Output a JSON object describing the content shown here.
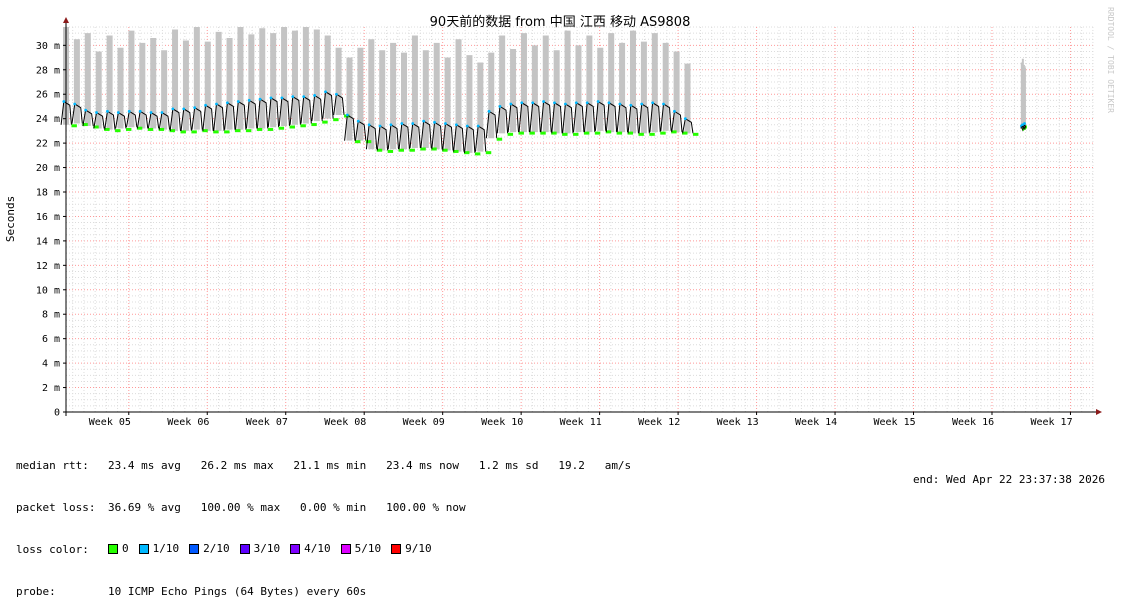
{
  "chart_data": {
    "type": "line",
    "title": "90天前的数据 from 中国 江西 移动 AS9808",
    "ylabel": "Seconds",
    "credit": "RRDTOOL / TOBI OETIKER",
    "ylim": [
      0,
      31.5
    ],
    "yticks": [
      {
        "v": 0,
        "label": "0"
      },
      {
        "v": 2,
        "label": "2 m"
      },
      {
        "v": 4,
        "label": "4 m"
      },
      {
        "v": 6,
        "label": "6 m"
      },
      {
        "v": 8,
        "label": "8 m"
      },
      {
        "v": 10,
        "label": "10 m"
      },
      {
        "v": 12,
        "label": "12 m"
      },
      {
        "v": 14,
        "label": "14 m"
      },
      {
        "v": 16,
        "label": "16 m"
      },
      {
        "v": 18,
        "label": "18 m"
      },
      {
        "v": 20,
        "label": "20 m"
      },
      {
        "v": 22,
        "label": "22 m"
      },
      {
        "v": 24,
        "label": "24 m"
      },
      {
        "v": 26,
        "label": "26 m"
      },
      {
        "v": 28,
        "label": "28 m"
      },
      {
        "v": 30,
        "label": "30 m"
      }
    ],
    "xrange": [
      4.2,
      17.3
    ],
    "xticks": [
      {
        "v": 5,
        "label": "Week 05"
      },
      {
        "v": 6,
        "label": "Week 06"
      },
      {
        "v": 7,
        "label": "Week 07"
      },
      {
        "v": 8,
        "label": "Week 08"
      },
      {
        "v": 9,
        "label": "Week 09"
      },
      {
        "v": 10,
        "label": "Week 10"
      },
      {
        "v": 11,
        "label": "Week 11"
      },
      {
        "v": 12,
        "label": "Week 12"
      },
      {
        "v": 13,
        "label": "Week 13"
      },
      {
        "v": 14,
        "label": "Week 14"
      },
      {
        "v": 15,
        "label": "Week 15"
      },
      {
        "v": 16,
        "label": "Week 16"
      },
      {
        "v": 17,
        "label": "Week 17"
      }
    ],
    "grid": true,
    "series": [
      {
        "segments": [
          {
            "x_start": 4.2,
            "x_end": 12.12,
            "days_per_point": 1,
            "base": [
              23.5,
              23.6,
              23.4,
              23.2,
              23.1,
              23.2,
              23.3,
              23.2,
              23.2,
              23.1,
              23.0,
              23.0,
              23.1,
              23.0,
              23.0,
              23.1,
              23.1,
              23.2,
              23.2,
              23.3,
              23.4,
              23.5,
              23.6,
              23.8,
              24.0,
              24.3,
              22.2,
              22.2,
              21.5,
              21.4,
              21.5,
              21.5,
              21.6,
              21.6,
              21.5,
              21.4,
              21.3,
              21.2,
              21.3,
              22.4,
              22.8,
              22.9,
              22.9,
              22.9,
              22.9,
              22.8,
              22.8,
              22.9,
              22.9,
              23.0,
              22.9,
              22.9,
              22.8,
              22.8,
              22.9,
              23.0,
              22.9,
              22.8
            ],
            "peak": [
              25.4,
              25.2,
              24.7,
              24.5,
              24.6,
              24.5,
              24.6,
              24.6,
              24.5,
              24.5,
              24.8,
              24.8,
              24.9,
              25.1,
              25.2,
              25.3,
              25.4,
              25.5,
              25.6,
              25.7,
              25.7,
              25.8,
              25.8,
              25.9,
              26.2,
              26.0,
              24.3,
              23.8,
              23.5,
              23.4,
              23.5,
              23.6,
              23.6,
              23.8,
              23.7,
              23.6,
              23.5,
              23.4,
              23.4,
              24.6,
              25.0,
              25.2,
              25.3,
              25.3,
              25.4,
              25.3,
              25.2,
              25.3,
              25.3,
              25.4,
              25.3,
              25.2,
              25.1,
              25.2,
              25.3,
              25.2,
              24.6,
              24.0
            ],
            "smoke": [
              31.5,
              30.5,
              31.0,
              29.5,
              30.8,
              29.8,
              31.2,
              30.2,
              30.6,
              29.6,
              31.3,
              30.4,
              31.5,
              30.3,
              31.1,
              30.6,
              31.5,
              30.9,
              31.4,
              31.0,
              31.5,
              31.2,
              31.5,
              31.3,
              30.8,
              29.8,
              29.0,
              29.8,
              30.5,
              29.6,
              30.2,
              29.4,
              30.8,
              29.6,
              30.2,
              29.0,
              30.5,
              29.2,
              28.6,
              29.4,
              30.8,
              29.7,
              31.0,
              30.0,
              30.8,
              29.6,
              31.2,
              30.0,
              30.8,
              29.8,
              31.0,
              30.2,
              31.2,
              30.3,
              31.0,
              30.2,
              29.5,
              28.5
            ]
          },
          {
            "x_start": 16.38,
            "x_end": 16.42,
            "base": [
              23.2,
              23.3,
              23.3,
              23.4
            ],
            "peak": [
              23.4,
              23.5,
              23.5,
              23.6
            ],
            "smoke": [
              28.6,
              28.9,
              28.4,
              28.2
            ]
          }
        ]
      }
    ]
  },
  "legend": {
    "rows": [
      {
        "key": "median rtt:",
        "text": "23.4 ms avg   26.2 ms max   21.1 ms min   23.4 ms now   1.2 ms sd   19.2   am/s"
      },
      {
        "key": "packet loss:",
        "text": "36.69 % avg   100.00 % max   0.00 % min   100.00 % now"
      }
    ],
    "loss_label": "loss color:",
    "loss_colors": [
      {
        "label": "0",
        "color": "#26ff00"
      },
      {
        "label": "1/10",
        "color": "#00b8ff"
      },
      {
        "label": "2/10",
        "color": "#0059ff"
      },
      {
        "label": "3/10",
        "color": "#5e00ff"
      },
      {
        "label": "4/10",
        "color": "#7e00ff"
      },
      {
        "label": "5/10",
        "color": "#dd00ff"
      },
      {
        "label": "9/10",
        "color": "#ff0000"
      }
    ],
    "probe_key": "probe:",
    "probe_text": "10 ICMP Echo Pings (64 Bytes) every 60s",
    "end_text": "end: Wed Apr 22 23:37:38 2026"
  },
  "colors": {
    "smoke": "#c4c4c4",
    "median": "#000000",
    "grid_major": "#ff9999",
    "grid_minor": "#dcdcdc",
    "axis": "#000000",
    "arrow": "#8b1a1a"
  }
}
